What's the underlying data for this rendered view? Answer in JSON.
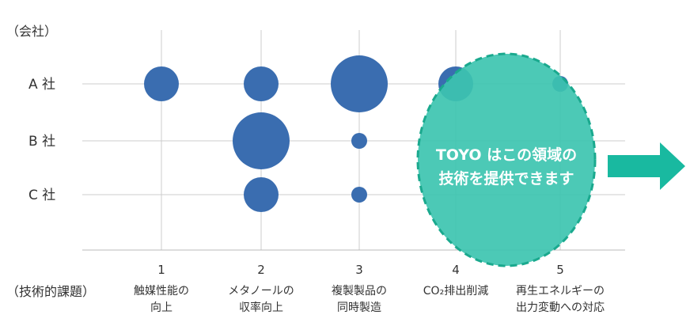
{
  "chart_data": {
    "type": "scatter",
    "y_title": "（会社）",
    "x_title": "（技術的課題）",
    "y_categories": [
      "A 社",
      "B 社",
      "C 社"
    ],
    "x_categories": [
      {
        "num": "1",
        "label": [
          "触媒性能の",
          "向上"
        ]
      },
      {
        "num": "2",
        "label": [
          "メタノールの",
          "収率向上"
        ]
      },
      {
        "num": "3",
        "label": [
          "複製製品の",
          "同時製造"
        ]
      },
      {
        "num": "4",
        "label": [
          "CO₂排出削減"
        ]
      },
      {
        "num": "5",
        "label": [
          "再生エネルギーの",
          "出力変動への対応"
        ]
      }
    ],
    "points": [
      {
        "company": "A 社",
        "issue": 1,
        "size": 22
      },
      {
        "company": "A 社",
        "issue": 2,
        "size": 22
      },
      {
        "company": "A 社",
        "issue": 3,
        "size": 36
      },
      {
        "company": "A 社",
        "issue": 4,
        "size": 22
      },
      {
        "company": "A 社",
        "issue": 5,
        "size": 10
      },
      {
        "company": "B 社",
        "issue": 2,
        "size": 36
      },
      {
        "company": "B 社",
        "issue": 3,
        "size": 10
      },
      {
        "company": "C 社",
        "issue": 2,
        "size": 22
      },
      {
        "company": "C 社",
        "issue": 3,
        "size": 10
      }
    ],
    "grid": true,
    "colors": {
      "bubble": "#3a6db0",
      "highlight": "#3dc4b0",
      "highlight_border": "#1aa98e",
      "arrow": "#19b9a0",
      "grid": "#cccccc"
    }
  },
  "callout": {
    "lines": [
      "TOYO はこの領域の",
      "技術を提供できます"
    ]
  }
}
